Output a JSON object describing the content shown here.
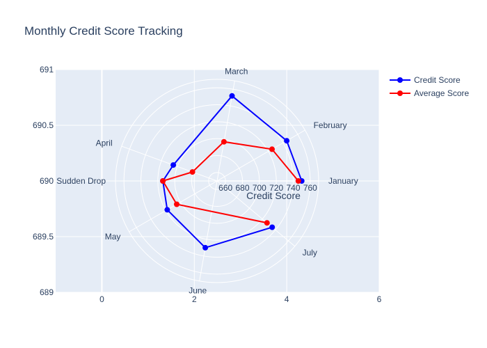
{
  "chart_data": {
    "type": "line",
    "title": "Monthly Credit Score Tracking",
    "cartesian_axes": {
      "x_ticks": [
        0,
        2,
        4,
        6
      ],
      "x_range": [
        -1,
        6
      ],
      "y_ticks": [
        689,
        689.5,
        690,
        690.5,
        691
      ],
      "y_range": [
        689,
        691
      ],
      "grid": true
    },
    "polar": {
      "radial_axis_title": "Credit Score",
      "radial_ticks": [
        660,
        680,
        700,
        720,
        740,
        760
      ],
      "radial_range": [
        650,
        770
      ],
      "angular_categories": [
        "January",
        "February",
        "March",
        "April",
        "Sudden Drop",
        "May",
        "June",
        "July"
      ],
      "category_angles_deg": [
        0,
        30,
        80,
        160,
        180,
        210,
        260,
        320
      ]
    },
    "series": [
      {
        "name": "Credit Score",
        "color": "#0000ff",
        "values": [
          {
            "theta": 0,
            "r": 750
          },
          {
            "theta": 30,
            "r": 745
          },
          {
            "theta": 80,
            "r": 752
          },
          {
            "theta": 160,
            "r": 705
          },
          {
            "theta": 180,
            "r": 714
          },
          {
            "theta": 210,
            "r": 718
          },
          {
            "theta": 260,
            "r": 730
          },
          {
            "theta": 320,
            "r": 735
          }
        ]
      },
      {
        "name": "Average Score",
        "color": "#ff0000",
        "values": [
          {
            "theta": 0,
            "r": 746
          },
          {
            "theta": 30,
            "r": 725
          },
          {
            "theta": 80,
            "r": 697
          },
          {
            "theta": 160,
            "r": 681
          },
          {
            "theta": 180,
            "r": 714
          },
          {
            "theta": 210,
            "r": 705
          },
          {
            "theta": 320,
            "r": 727
          }
        ]
      }
    ],
    "legend": {
      "position": "top-right",
      "entries": [
        "Credit Score",
        "Average Score"
      ]
    }
  }
}
